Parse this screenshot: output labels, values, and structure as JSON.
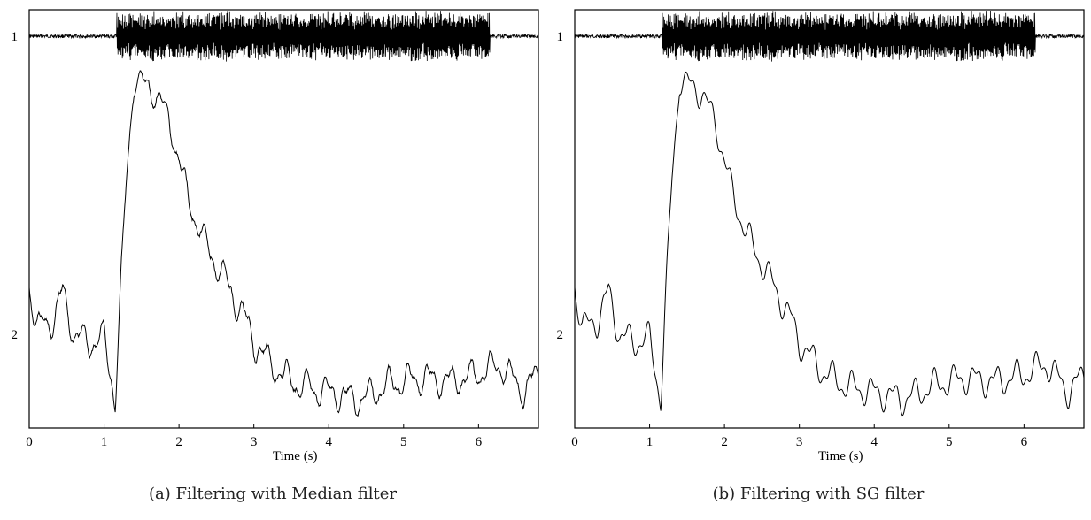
{
  "charts": [
    {
      "id": "a",
      "caption": "(a) Filtering with Median filter",
      "xlabel": "Time (s)",
      "x_ticks": [
        "0",
        "1",
        "2",
        "3",
        "4",
        "5",
        "6"
      ],
      "trace_labels": [
        "1",
        "2"
      ]
    },
    {
      "id": "b",
      "caption": "(b) Filtering with SG filter",
      "xlabel": "Time (s)",
      "x_ticks": [
        "0",
        "1",
        "2",
        "3",
        "4",
        "5",
        "6"
      ],
      "trace_labels": [
        "1",
        "2"
      ]
    }
  ],
  "chart_data": [
    {
      "type": "line",
      "xlim": [
        0,
        6.8
      ],
      "x_ticks": [
        0,
        1,
        2,
        3,
        4,
        5,
        6
      ],
      "series": [
        {
          "label": "1",
          "burst_start_s": 1.17,
          "burst_end_s": 6.15,
          "kind": "EMG-like oscillation"
        },
        {
          "label": "2",
          "filter": "Median filter",
          "x": [
            0,
            0.1,
            0.3,
            0.45,
            0.6,
            0.8,
            1.0,
            1.15,
            1.2,
            1.3,
            1.4,
            1.5,
            1.7,
            1.9,
            2.1,
            2.3,
            2.5,
            2.7,
            2.9,
            3.0,
            3.3,
            3.6,
            4.0,
            4.4,
            4.8,
            5.2,
            5.6,
            6.0,
            6.3,
            6.6,
            6.8
          ],
          "y": [
            0.4,
            0.28,
            0.3,
            0.38,
            0.26,
            0.24,
            0.25,
            0.08,
            0.3,
            0.7,
            0.98,
            0.96,
            0.94,
            0.84,
            0.66,
            0.54,
            0.46,
            0.38,
            0.3,
            0.24,
            0.16,
            0.12,
            0.1,
            0.08,
            0.12,
            0.14,
            0.13,
            0.15,
            0.18,
            0.1,
            0.15
          ]
        }
      ]
    },
    {
      "type": "line",
      "xlim": [
        0,
        6.8
      ],
      "x_ticks": [
        0,
        1,
        2,
        3,
        4,
        5,
        6
      ],
      "series": [
        {
          "label": "1",
          "burst_start_s": 1.17,
          "burst_end_s": 6.15,
          "kind": "EMG-like oscillation"
        },
        {
          "label": "2",
          "filter": "SG filter",
          "x": [
            0,
            0.1,
            0.3,
            0.45,
            0.6,
            0.8,
            1.0,
            1.15,
            1.2,
            1.3,
            1.4,
            1.5,
            1.7,
            1.9,
            2.1,
            2.3,
            2.5,
            2.7,
            2.9,
            3.0,
            3.3,
            3.6,
            4.0,
            4.4,
            4.8,
            5.2,
            5.6,
            6.0,
            6.3,
            6.6,
            6.8
          ],
          "y": [
            0.4,
            0.28,
            0.3,
            0.38,
            0.26,
            0.24,
            0.25,
            0.08,
            0.3,
            0.7,
            0.98,
            0.96,
            0.94,
            0.84,
            0.66,
            0.54,
            0.46,
            0.38,
            0.3,
            0.24,
            0.16,
            0.12,
            0.1,
            0.08,
            0.12,
            0.14,
            0.13,
            0.15,
            0.18,
            0.1,
            0.15
          ]
        }
      ]
    }
  ]
}
